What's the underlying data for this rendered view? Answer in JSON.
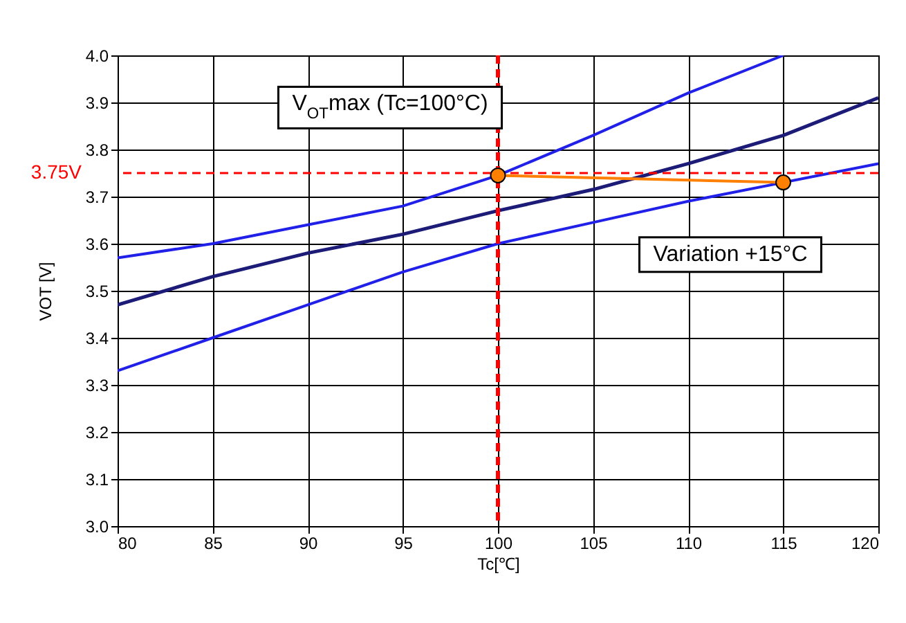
{
  "chart_data": {
    "type": "line",
    "xlabel": "Tc[℃]",
    "ylabel": "VOT [V]",
    "x": [
      80,
      85,
      90,
      95,
      100,
      105,
      110,
      115,
      120
    ],
    "series": [
      {
        "color": "#2020e8",
        "values": [
          3.57,
          3.6,
          3.64,
          3.68,
          3.745,
          3.83,
          3.92,
          4.0,
          null
        ]
      },
      {
        "color": "#1c1c78",
        "values": [
          3.47,
          3.53,
          3.58,
          3.62,
          3.67,
          3.715,
          3.77,
          3.83,
          3.91
        ]
      },
      {
        "color": "#2020e8",
        "values": [
          3.33,
          3.4,
          3.47,
          3.54,
          3.6,
          3.645,
          3.69,
          3.73,
          3.77
        ]
      },
      {
        "color": "#ff7f00",
        "marker": "circle",
        "x": [
          100,
          115
        ],
        "values": [
          3.745,
          3.73
        ]
      }
    ],
    "xlim": [
      80,
      120
    ],
    "xticks": [
      80,
      85,
      90,
      95,
      100,
      105,
      110,
      115,
      120
    ],
    "ylim": [
      3,
      4
    ],
    "yticks": [
      {
        "value": 3,
        "label": "3.0"
      },
      3.1,
      3.2,
      3.3,
      3.4,
      3.5,
      3.6,
      3.7,
      3.8,
      3.9,
      {
        "value": 4,
        "label": "4.0"
      }
    ],
    "grid": true,
    "ref_lines": [
      {
        "axis": "y",
        "value": 3.75,
        "label": "3.75V",
        "color": "#ff0000",
        "line_style": "dashed"
      },
      {
        "axis": "x",
        "value": 100,
        "color": "#ff0000",
        "line_style": "dashed"
      }
    ],
    "annotations": [
      {
        "text": "V$_{OT}$max (Tc=100°C)",
        "x": 100,
        "y": 3.745
      },
      {
        "text": "Variation +15°C",
        "x": 108,
        "y": 3.74
      }
    ]
  }
}
